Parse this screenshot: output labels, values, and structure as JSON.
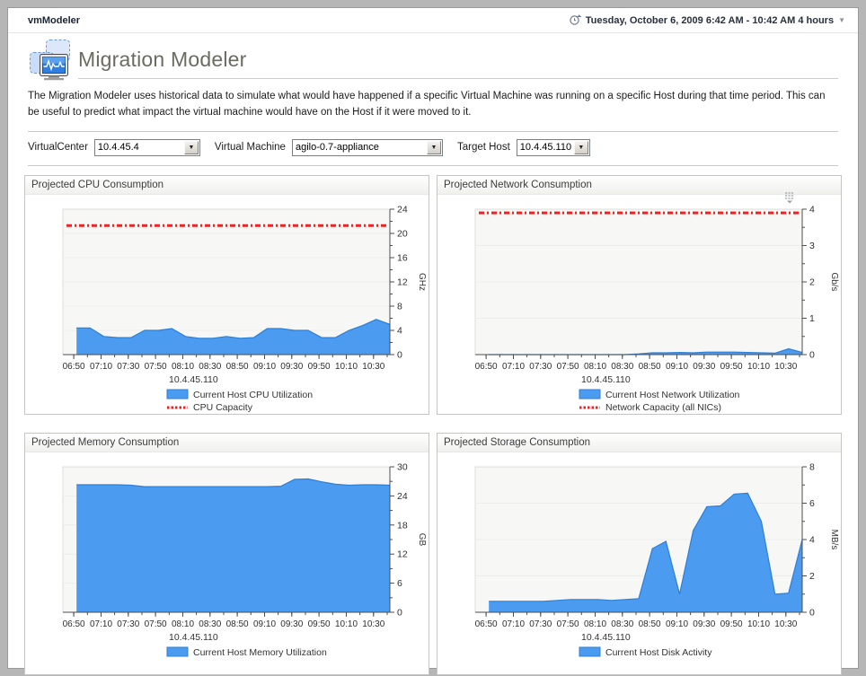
{
  "topbar": {
    "app_title": "vmModeler",
    "time_range": "Tuesday, October 6, 2009 6:42 AM - 10:42 AM 4 hours"
  },
  "header": {
    "title": "Migration Modeler",
    "description": "The Migration Modeler uses historical data to simulate what would have happened if a specific Virtual Machine was running on a specific Host during that time period. This can be useful to predict what impact the virtual machine would have on the Host if it were moved to it."
  },
  "filters": {
    "virtualcenter": {
      "label": "VirtualCenter",
      "value": "10.4.45.4"
    },
    "virtual_machine": {
      "label": "Virtual Machine",
      "value": "agilo-0.7-appliance"
    },
    "target_host": {
      "label": "Target Host",
      "value": "10.4.45.110"
    }
  },
  "chart_data": [
    {
      "type": "area",
      "title": "Projected CPU Consumption",
      "host": "10.4.45.110",
      "series_label": "Current Host CPU Utilization",
      "unit": "GHz",
      "ylim": [
        0,
        24
      ],
      "yticks": [
        0,
        4,
        8,
        12,
        16,
        20,
        24
      ],
      "y_minor": 2,
      "x_range": [
        "06:42",
        "10:42"
      ],
      "x_major": [
        "06:50",
        "07:10",
        "07:30",
        "07:50",
        "08:10",
        "08:30",
        "08:50",
        "09:10",
        "09:30",
        "09:50",
        "10:10",
        "10:30"
      ],
      "samples_start": "06:52",
      "samples_step": 10,
      "values": [
        4.4,
        4.4,
        3.0,
        2.8,
        2.8,
        4.0,
        4.0,
        4.3,
        3.0,
        2.7,
        2.7,
        3.0,
        2.7,
        2.8,
        4.3,
        4.3,
        4.0,
        4.0,
        2.8,
        2.8,
        4.0,
        4.8,
        5.8,
        5.0
      ],
      "capacity": {
        "value": 21.3,
        "label": "CPU Capacity"
      },
      "colors": {
        "fill": "#4b9bf0",
        "stroke": "#2d7fd6",
        "capacity": "#ee2222"
      }
    },
    {
      "type": "area",
      "title": "Projected Network Consumption",
      "host": "10.4.45.110",
      "series_label": "Current Host Network Utilization",
      "unit": "Gb/s",
      "ylim": [
        0,
        4
      ],
      "yticks": [
        0,
        1,
        2,
        3,
        4
      ],
      "y_minor": 0.5,
      "x_range": [
        "06:42",
        "10:42"
      ],
      "x_major": [
        "06:50",
        "07:10",
        "07:30",
        "07:50",
        "08:10",
        "08:30",
        "08:50",
        "09:10",
        "09:30",
        "09:50",
        "10:10",
        "10:30"
      ],
      "samples_start": "06:52",
      "samples_step": 10,
      "values": [
        0,
        0,
        0,
        0,
        0,
        0,
        0,
        0,
        0,
        0,
        0,
        0.02,
        0.05,
        0.05,
        0.06,
        0.05,
        0.07,
        0.07,
        0.07,
        0.06,
        0.05,
        0.04,
        0.16,
        0.06
      ],
      "capacity": {
        "value": 3.9,
        "label": "Network Capacity (all NICs)"
      },
      "colors": {
        "fill": "#4b9bf0",
        "stroke": "#2d7fd6",
        "capacity": "#ee2222"
      }
    },
    {
      "type": "area",
      "title": "Projected Memory Consumption",
      "host": "10.4.45.110",
      "series_label": "Current Host Memory Utilization",
      "unit": "GB",
      "ylim": [
        0,
        30
      ],
      "yticks": [
        0,
        6,
        12,
        18,
        24,
        30
      ],
      "y_minor": 3,
      "x_range": [
        "06:42",
        "10:42"
      ],
      "x_major": [
        "06:50",
        "07:10",
        "07:30",
        "07:50",
        "08:10",
        "08:30",
        "08:50",
        "09:10",
        "09:30",
        "09:50",
        "10:10",
        "10:30"
      ],
      "samples_start": "06:52",
      "samples_step": 10,
      "values": [
        26.3,
        26.3,
        26.3,
        26.3,
        26.2,
        25.9,
        25.9,
        25.9,
        25.9,
        25.9,
        25.9,
        25.9,
        25.9,
        25.9,
        25.9,
        26.0,
        27.4,
        27.5,
        26.9,
        26.4,
        26.2,
        26.3,
        26.3,
        26.2
      ],
      "capacity": null,
      "colors": {
        "fill": "#4b9bf0",
        "stroke": "#2d7fd6",
        "capacity": "#ee2222"
      }
    },
    {
      "type": "area",
      "title": "Projected Storage Consumption",
      "host": "10.4.45.110",
      "series_label": "Current Host Disk Activity",
      "unit": "MB/s",
      "ylim": [
        0,
        8
      ],
      "yticks": [
        0,
        2,
        4,
        6,
        8
      ],
      "y_minor": 1,
      "x_range": [
        "06:42",
        "10:42"
      ],
      "x_major": [
        "06:50",
        "07:10",
        "07:30",
        "07:50",
        "08:10",
        "08:30",
        "08:50",
        "09:10",
        "09:30",
        "09:50",
        "10:10",
        "10:30"
      ],
      "samples_start": "06:52",
      "samples_step": 10,
      "values": [
        0.6,
        0.6,
        0.6,
        0.6,
        0.6,
        0.65,
        0.7,
        0.7,
        0.7,
        0.65,
        0.7,
        0.75,
        3.5,
        3.9,
        1.0,
        4.5,
        5.8,
        5.85,
        6.5,
        6.55,
        5.0,
        1.0,
        1.05,
        4.0
      ],
      "capacity": null,
      "colors": {
        "fill": "#4b9bf0",
        "stroke": "#2d7fd6",
        "capacity": "#ee2222"
      }
    }
  ]
}
